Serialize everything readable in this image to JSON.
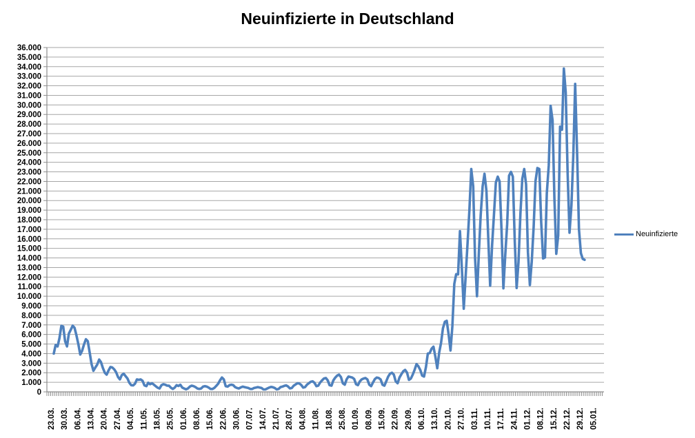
{
  "title": "Neuinfizierte in Deutschland",
  "legend": {
    "label": "Neuinfizierte"
  },
  "colors": {
    "series_line": "#4f81bd",
    "gridline": "#a6a6a6",
    "axis": "#8c8c8c",
    "text": "#000000",
    "background": "#ffffff"
  },
  "chart_data": {
    "type": "line",
    "title": "Neuinfizierte in Deutschland",
    "xlabel": "",
    "ylabel": "",
    "ylim": [
      0,
      36000
    ],
    "y_tick_step": 1000,
    "grid": true,
    "legend_position": "right",
    "x_tick_labels": [
      "23.03.",
      "30.03.",
      "06.04.",
      "13.04.",
      "20.04.",
      "27.04.",
      "04.05.",
      "11.05.",
      "18.05.",
      "25.05.",
      "01.06.",
      "08.06.",
      "15.06.",
      "22.06.",
      "30.06.",
      "07.07.",
      "14.07.",
      "21.07.",
      "28.07.",
      "04.08.",
      "11.08.",
      "18.08.",
      "25.08.",
      "01.09.",
      "08.09.",
      "15.09.",
      "22.09.",
      "29.09.",
      "06.10.",
      "13.10.",
      "20.10.",
      "27.10.",
      "03.11.",
      "10.11.",
      "17.11.",
      "24.11.",
      "01.12.",
      "08.12.",
      "15.12.",
      "22.12.",
      "29.12.",
      "05.01."
    ],
    "y_tick_labels": [
      "0",
      "1.000",
      "2.000",
      "3.000",
      "4.000",
      "5.000",
      "6.000",
      "7.000",
      "8.000",
      "9.000",
      "10.000",
      "11.000",
      "12.000",
      "13.000",
      "14.000",
      "15.000",
      "16.000",
      "17.000",
      "18.000",
      "19.000",
      "20.000",
      "21.000",
      "22.000",
      "23.000",
      "24.000",
      "25.000",
      "26.000",
      "27.000",
      "28.000",
      "29.000",
      "30.000",
      "31.000",
      "32.000",
      "33.000",
      "34.000",
      "35.000",
      "36.000"
    ],
    "series": [
      {
        "name": "Neuinfizierte",
        "color": "#4f81bd",
        "frequency": "daily",
        "start_date": "23.03.",
        "end_date": "29.12.",
        "values": [
          4000,
          4900,
          4750,
          5600,
          6900,
          6820,
          5300,
          4750,
          6100,
          6500,
          6920,
          6700,
          5900,
          5000,
          3900,
          4300,
          4950,
          5500,
          5300,
          4100,
          2900,
          2200,
          2550,
          2850,
          3380,
          3100,
          2500,
          2000,
          1800,
          2250,
          2600,
          2550,
          2350,
          2050,
          1550,
          1300,
          1750,
          1900,
          1650,
          1400,
          950,
          700,
          680,
          850,
          1300,
          1250,
          1300,
          1150,
          680,
          600,
          950,
          800,
          900,
          750,
          580,
          430,
          350,
          700,
          800,
          750,
          650,
          640,
          430,
          300,
          450,
          700,
          620,
          740,
          450,
          350,
          270,
          350,
          550,
          650,
          600,
          500,
          350,
          300,
          350,
          550,
          600,
          550,
          450,
          300,
          300,
          420,
          620,
          850,
          1200,
          1500,
          1300,
          600,
          550,
          700,
          750,
          700,
          500,
          400,
          350,
          470,
          550,
          500,
          450,
          400,
          300,
          300,
          400,
          450,
          500,
          450,
          400,
          250,
          250,
          350,
          450,
          520,
          480,
          400,
          250,
          300,
          500,
          550,
          630,
          680,
          560,
          360,
          400,
          650,
          780,
          900,
          870,
          720,
          450,
          500,
          750,
          900,
          1050,
          1100,
          950,
          600,
          650,
          970,
          1200,
          1400,
          1450,
          1200,
          700,
          650,
          1200,
          1500,
          1700,
          1800,
          1550,
          900,
          750,
          1300,
          1600,
          1550,
          1500,
          1350,
          800,
          700,
          1100,
          1300,
          1400,
          1450,
          1300,
          750,
          600,
          1000,
          1350,
          1500,
          1450,
          1300,
          750,
          650,
          1100,
          1600,
          1900,
          2000,
          1800,
          1100,
          900,
          1500,
          1850,
          2150,
          2300,
          2000,
          1250,
          1400,
          1800,
          2300,
          2900,
          2670,
          2280,
          1700,
          1600,
          2600,
          4000,
          4060,
          4520,
          4720,
          3650,
          2470,
          4120,
          5130,
          6640,
          7330,
          7430,
          5980,
          4330,
          6870,
          11290,
          12300,
          12280,
          16800,
          13000,
          8690,
          12000,
          15500,
          19000,
          23300,
          21500,
          14000,
          10000,
          14500,
          18500,
          21500,
          22800,
          21000,
          16000,
          11100,
          15300,
          18500,
          21900,
          22500,
          22000,
          16900,
          10820,
          14420,
          17560,
          22600,
          23000,
          22500,
          15740,
          10860,
          13550,
          18630,
          22270,
          23300,
          21700,
          14600,
          11170,
          13600,
          17270,
          22050,
          23400,
          23300,
          17770,
          13950,
          14050,
          20800,
          23680,
          29900,
          28400,
          20200,
          14430,
          16360,
          27730,
          27400,
          33800,
          31300,
          22770,
          16640,
          19530,
          24740,
          32200,
          25000,
          17000,
          14500,
          13900,
          13800
        ]
      }
    ]
  }
}
